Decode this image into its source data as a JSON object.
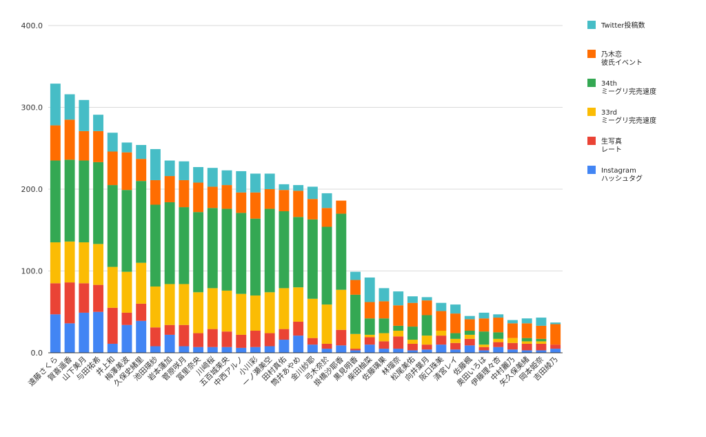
{
  "chart_data": {
    "type": "bar",
    "stacked": true,
    "title": "",
    "xlabel": "",
    "ylabel": "",
    "ylim": [
      0,
      400
    ],
    "y_ticks": [
      "0.0",
      "100.0",
      "200.0",
      "300.0",
      "400.0"
    ],
    "grid": true,
    "legend_position": "right",
    "categories": [
      "遠藤さくら",
      "賀喜遥香",
      "山下美月",
      "与田祐希",
      "井上和",
      "梅澤美波",
      "久保史緒里",
      "池田瑛紗",
      "岩本蓮加",
      "菅原咲月",
      "冨里奈央",
      "川﨑桜",
      "五百城茉央",
      "中西アルノ",
      "小川彩",
      "一ノ瀬美空",
      "田村真佑",
      "筒井あやめ",
      "金川紗耶",
      "弓木奈於",
      "掛橋沙耶香",
      "黒見明香",
      "柴田柚菜",
      "佐藤璃果",
      "林瑠奈",
      "松尾美佑",
      "向井葉月",
      "阪口珠美",
      "清宮レイ",
      "佐藤楓",
      "奥田いろは",
      "伊藤理々杏",
      "中村麗乃",
      "矢久保美緒",
      "岡本姫奈",
      "吉田綾乃"
    ],
    "series": [
      {
        "name": "Instagram\nハッシュタグ",
        "color": "#4285f4",
        "values": [
          47,
          36,
          49,
          50,
          11,
          34,
          39,
          8,
          22,
          8,
          7,
          7,
          7,
          6,
          7,
          8,
          16,
          21,
          10,
          5,
          9,
          3,
          10,
          5,
          5,
          3,
          4,
          10,
          4,
          9,
          3,
          7,
          4,
          3,
          3,
          5
        ]
      },
      {
        "name": "生写真\nレート",
        "color": "#ea4335",
        "values": [
          38,
          50,
          36,
          33,
          44,
          15,
          21,
          23,
          12,
          26,
          17,
          22,
          19,
          16,
          20,
          16,
          13,
          17,
          8,
          6,
          19,
          2,
          9,
          9,
          15,
          8,
          6,
          11,
          8,
          8,
          4,
          6,
          8,
          8,
          8,
          5
        ]
      },
      {
        "name": "33rd\nミーグリ完売速度",
        "color": "#fbbc04",
        "values": [
          50,
          50,
          50,
          50,
          50,
          50,
          50,
          50,
          50,
          50,
          50,
          50,
          50,
          50,
          43,
          50,
          50,
          42,
          48,
          48,
          49,
          18,
          3,
          10,
          7,
          5,
          11,
          6,
          5,
          5,
          3,
          4,
          6,
          3,
          3,
          0
        ]
      },
      {
        "name": "34th\nミーグリ完売速度",
        "color": "#34a853",
        "values": [
          100,
          100,
          100,
          100,
          100,
          100,
          100,
          100,
          100,
          94,
          98,
          98,
          100,
          99,
          94,
          102,
          94,
          86,
          97,
          95,
          93,
          48,
          20,
          18,
          6,
          16,
          25,
          0,
          7,
          5,
          16,
          8,
          0,
          4,
          3,
          0
        ]
      },
      {
        "name": "乃木恋\n彼氏イベント",
        "color": "#ff6d01",
        "values": [
          43,
          49,
          36,
          38,
          41,
          46,
          27,
          30,
          32,
          33,
          36,
          26,
          29,
          25,
          32,
          24,
          26,
          32,
          25,
          23,
          16,
          18,
          20,
          21,
          25,
          29,
          18,
          24,
          24,
          14,
          16,
          18,
          18,
          18,
          16,
          25
        ]
      },
      {
        "name": "Twitter投稿数",
        "color": "#46bdc6",
        "values": [
          51,
          31,
          38,
          20,
          23,
          12,
          17,
          38,
          19,
          23,
          19,
          23,
          18,
          26,
          23,
          19,
          7,
          7,
          15,
          18,
          0,
          10,
          30,
          16,
          17,
          8,
          4,
          10,
          11,
          4,
          7,
          4,
          4,
          6,
          10,
          2
        ]
      }
    ]
  }
}
